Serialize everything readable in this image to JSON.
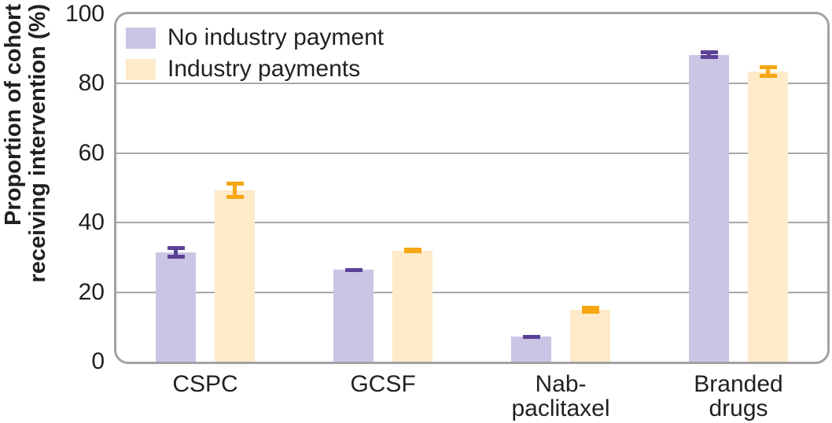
{
  "style": {
    "background": "#ffffff",
    "text_color": "#231f20",
    "grid_color": "#a9a8ab",
    "border_color": "#a3a1a4"
  },
  "chart_data": {
    "type": "bar",
    "title": "",
    "ylabel": "Proportion of cohort receiving intervention (%)",
    "ylabel_lines": [
      "Proportion of cohort",
      "receiving intervention (%)"
    ],
    "xlabel": "",
    "ylim": [
      0,
      100
    ],
    "yticks": [
      100,
      80,
      60,
      40,
      20,
      0
    ],
    "gridlines_at": [
      80,
      60,
      40,
      20
    ],
    "grid": "horizontal",
    "legend_position": "top-left inside plot",
    "categories": [
      "CSPC",
      "GCSF",
      "Nab-paclitaxel",
      "Branded drugs"
    ],
    "category_label_lines": [
      [
        "CSPC"
      ],
      [
        "GCSF"
      ],
      [
        "Nab-",
        "paclitaxel"
      ],
      [
        "Branded",
        "drugs"
      ]
    ],
    "error_bars": "95% confidence interval whiskers",
    "series": [
      {
        "name": "No industry payment",
        "values": [
          31.4,
          26.4,
          7.2,
          88.3
        ],
        "errors": [
          1.8,
          0.6,
          0.6,
          1.2
        ],
        "bar_color": "#cbc5e5",
        "error_color": "#5c4297"
      },
      {
        "name": "Industry payments",
        "values": [
          49.3,
          32.0,
          14.9,
          83.5
        ],
        "errors": [
          2.4,
          0.8,
          1.1,
          1.8
        ],
        "bar_color": "#fdeac9",
        "error_color": "#f6a713"
      }
    ]
  }
}
